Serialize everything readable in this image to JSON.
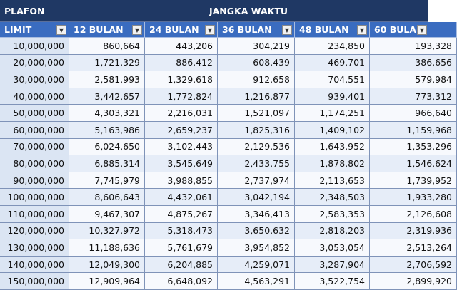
{
  "header": {
    "plafon": "PLAFON",
    "jangka_waktu": "JANGKA WAKTU"
  },
  "columns": [
    "LIMIT",
    "12 BULAN",
    "24 BULAN",
    "36 BULAN",
    "48 BULAN",
    "60 BULA"
  ],
  "table": {
    "rows": [
      [
        "10,000,000",
        "860,664",
        "443,206",
        "304,219",
        "234,850",
        "193,328"
      ],
      [
        "20,000,000",
        "1,721,329",
        "886,412",
        "608,439",
        "469,701",
        "386,656"
      ],
      [
        "30,000,000",
        "2,581,993",
        "1,329,618",
        "912,658",
        "704,551",
        "579,984"
      ],
      [
        "40,000,000",
        "3,442,657",
        "1,772,824",
        "1,216,877",
        "939,401",
        "773,312"
      ],
      [
        "50,000,000",
        "4,303,321",
        "2,216,031",
        "1,521,097",
        "1,174,251",
        "966,640"
      ],
      [
        "60,000,000",
        "5,163,986",
        "2,659,237",
        "1,825,316",
        "1,409,102",
        "1,159,968"
      ],
      [
        "70,000,000",
        "6,024,650",
        "3,102,443",
        "2,129,536",
        "1,643,952",
        "1,353,296"
      ],
      [
        "80,000,000",
        "6,885,314",
        "3,545,649",
        "2,433,755",
        "1,878,802",
        "1,546,624"
      ],
      [
        "90,000,000",
        "7,745,979",
        "3,988,855",
        "2,737,974",
        "2,113,653",
        "1,739,952"
      ],
      [
        "100,000,000",
        "8,606,643",
        "4,432,061",
        "3,042,194",
        "2,348,503",
        "1,933,280"
      ],
      [
        "110,000,000",
        "9,467,307",
        "4,875,267",
        "3,346,413",
        "2,583,353",
        "2,126,608"
      ],
      [
        "120,000,000",
        "10,327,972",
        "5,318,473",
        "3,650,632",
        "2,818,203",
        "2,319,936"
      ],
      [
        "130,000,000",
        "11,188,636",
        "5,761,679",
        "3,954,852",
        "3,053,054",
        "2,513,264"
      ],
      [
        "140,000,000",
        "12,049,300",
        "6,204,885",
        "4,259,071",
        "3,287,904",
        "2,706,592"
      ],
      [
        "150,000,000",
        "12,909,964",
        "6,648,092",
        "4,563,291",
        "3,522,754",
        "2,899,920"
      ]
    ]
  }
}
